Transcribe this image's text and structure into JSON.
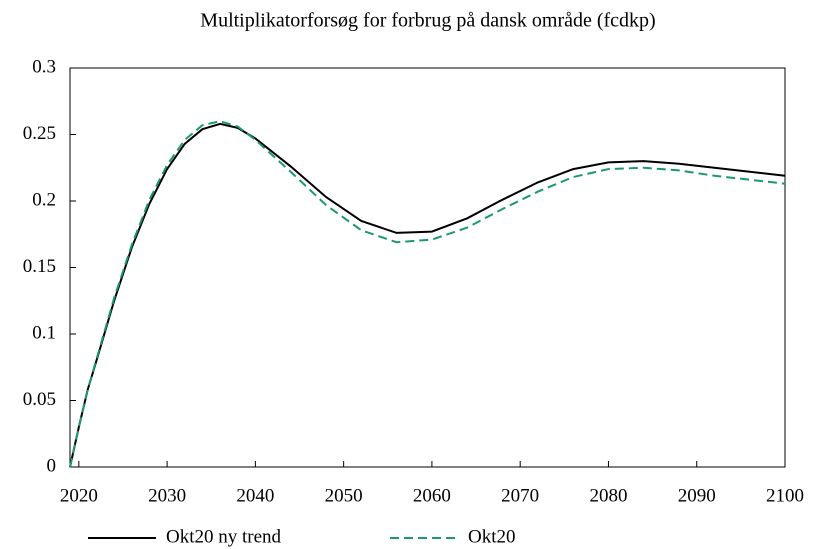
{
  "chart_data": {
    "type": "line",
    "title": "Multiplikatorforsøg for forbrug på dansk område (fcdkp)",
    "x": [
      2019,
      2020,
      2021,
      2022,
      2024,
      2026,
      2028,
      2030,
      2032,
      2034,
      2036,
      2038,
      2040,
      2044,
      2048,
      2052,
      2056,
      2060,
      2064,
      2068,
      2072,
      2076,
      2080,
      2084,
      2088,
      2092,
      2096,
      2100
    ],
    "series": [
      {
        "name": "Okt20 ny trend",
        "color": "#000000",
        "dash": false,
        "values": [
          0,
          0.03,
          0.058,
          0.08,
          0.125,
          0.165,
          0.198,
          0.224,
          0.243,
          0.254,
          0.258,
          0.255,
          0.247,
          0.226,
          0.203,
          0.185,
          0.176,
          0.177,
          0.187,
          0.201,
          0.214,
          0.224,
          0.229,
          0.23,
          0.228,
          0.225,
          0.222,
          0.219
        ]
      },
      {
        "name": "Okt20",
        "color": "#1a9a6c",
        "dash": true,
        "values": [
          0,
          0.03,
          0.058,
          0.081,
          0.127,
          0.167,
          0.201,
          0.227,
          0.246,
          0.257,
          0.26,
          0.256,
          0.246,
          0.222,
          0.197,
          0.178,
          0.169,
          0.171,
          0.18,
          0.194,
          0.207,
          0.218,
          0.224,
          0.225,
          0.223,
          0.219,
          0.216,
          0.213
        ]
      }
    ],
    "xlim": [
      2019,
      2100
    ],
    "xticks": [
      2020,
      2030,
      2040,
      2050,
      2060,
      2070,
      2080,
      2090,
      2100
    ],
    "ylim": [
      0,
      0.3
    ],
    "yticks": [
      0,
      0.05,
      0.1,
      0.15,
      0.2,
      0.25,
      0.3
    ],
    "grid": false,
    "legend": "bottom"
  }
}
